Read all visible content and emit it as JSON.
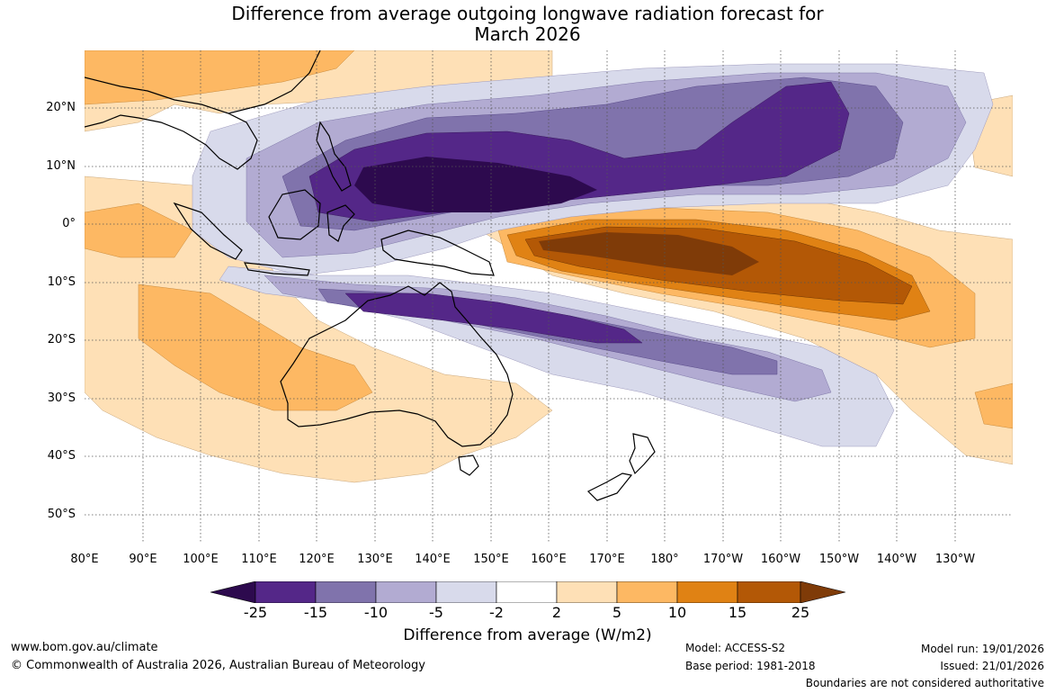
{
  "title": {
    "line1": "Difference from average outgoing longwave radiation forecast for",
    "line2": "March 2026"
  },
  "map": {
    "lat_ticks": [
      "20°N",
      "10°N",
      "0°",
      "10°S",
      "20°S",
      "30°S",
      "40°S",
      "50°S"
    ],
    "lon_ticks": [
      "80°E",
      "90°E",
      "100°E",
      "110°E",
      "120°E",
      "130°E",
      "140°E",
      "150°E",
      "160°E",
      "170°E",
      "180°",
      "170°W",
      "160°W",
      "150°W",
      "140°W",
      "130°W"
    ]
  },
  "colorbar": {
    "labels": [
      "-25",
      "-15",
      "-10",
      "-5",
      "-2",
      "2",
      "5",
      "10",
      "15",
      "25"
    ],
    "colors": [
      "#2d0a4e",
      "#542788",
      "#8073ac",
      "#b2abd2",
      "#d8daeb",
      "#ffffff",
      "#fee0b6",
      "#fdb863",
      "#e08214",
      "#b35806",
      "#7f3b08"
    ],
    "title": "Difference from average (W/m2)"
  },
  "footer": {
    "url": "www.bom.gov.au/climate",
    "copyright": "© Commonwealth of Australia 2026, Australian Bureau of Meteorology",
    "model": "Model: ACCESS-S2",
    "base_period": "Base period: 1981-2018",
    "model_run": "Model run: 19/01/2026",
    "issued": "Issued: 21/01/2026",
    "disclaimer": "Boundaries are not considered authoritative"
  }
}
